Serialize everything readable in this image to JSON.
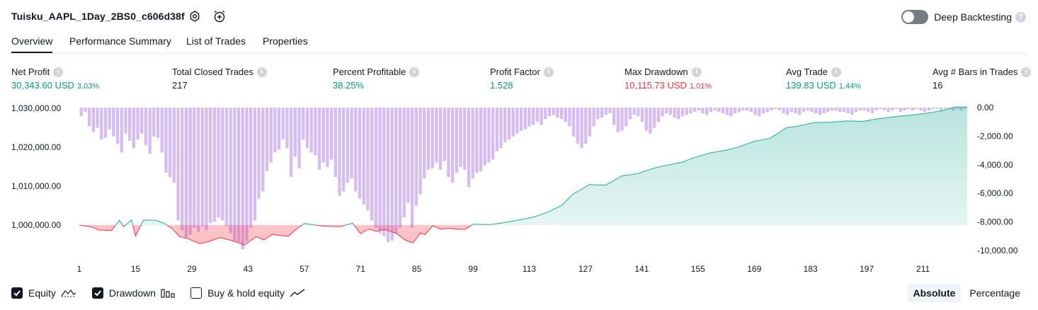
{
  "header": {
    "strategy_name": "Tuisku_AAPL_1Day_2BS0_c606d38f",
    "settings_icon": "gear-icon",
    "alert_icon": "alarm-plus-icon",
    "deep_backtesting_label": "Deep Backtesting",
    "deep_backtesting_enabled": false,
    "help_icon": "question-icon"
  },
  "tabs": [
    {
      "label": "Overview",
      "active": true
    },
    {
      "label": "Performance Summary",
      "active": false
    },
    {
      "label": "List of Trades",
      "active": false
    },
    {
      "label": "Properties",
      "active": false
    }
  ],
  "metrics": [
    {
      "label": "Net Profit",
      "value": "30,343.60 USD",
      "pct": "3.03%",
      "color": "#089981"
    },
    {
      "label": "Total Closed Trades",
      "value": "217",
      "pct": "",
      "color": "#131722"
    },
    {
      "label": "Percent Profitable",
      "value": "38.25%",
      "pct": "",
      "color": "#089981"
    },
    {
      "label": "Profit Factor",
      "value": "1.528",
      "pct": "",
      "color": "#089981"
    },
    {
      "label": "Max Drawdown",
      "value": "10,115.73 USD",
      "pct": "1.01%",
      "color": "#f23645"
    },
    {
      "label": "Avg Trade",
      "value": "139.83 USD",
      "pct": "1.44%",
      "color": "#089981"
    },
    {
      "label": "Avg # Bars in Trades",
      "value": "16",
      "pct": "",
      "color": "#131722"
    }
  ],
  "chart_data": {
    "type": "area",
    "x_ticks": [
      "1",
      "15",
      "29",
      "43",
      "57",
      "71",
      "85",
      "99",
      "113",
      "127",
      "141",
      "155",
      "169",
      "183",
      "197",
      "211"
    ],
    "xlim": [
      1,
      222
    ],
    "left_axis": {
      "ticks": [
        "1,030,000.00",
        "1,020,000.00",
        "1,010,000.00",
        "1,000,000.00"
      ],
      "ylim": [
        992000,
        1030500
      ],
      "baseline": 1000000
    },
    "right_axis": {
      "ticks": [
        "0.00",
        "-2,000.00",
        "-4,000.00",
        "-6,000.00",
        "-8,000.00",
        "-10,000.00"
      ],
      "ylim": [
        -10400,
        100
      ]
    },
    "equity": {
      "name": "Equity",
      "points": [
        [
          1,
          1000000
        ],
        [
          4,
          999500
        ],
        [
          6,
          998700
        ],
        [
          9,
          998600
        ],
        [
          11,
          1001200
        ],
        [
          12,
          999600
        ],
        [
          14,
          1001300
        ],
        [
          15,
          997200
        ],
        [
          17,
          1001300
        ],
        [
          20,
          1001200
        ],
        [
          22,
          1000500
        ],
        [
          24,
          999200
        ],
        [
          26,
          997000
        ],
        [
          28,
          996500
        ],
        [
          31,
          995200
        ],
        [
          33,
          995700
        ],
        [
          36,
          996800
        ],
        [
          39,
          996000
        ],
        [
          41,
          995300
        ],
        [
          42,
          994800
        ],
        [
          45,
          997000
        ],
        [
          47,
          996200
        ],
        [
          49,
          997600
        ],
        [
          51,
          997300
        ],
        [
          53,
          997100
        ],
        [
          55,
          998900
        ],
        [
          57,
          1000400
        ],
        [
          59,
          1000100
        ],
        [
          62,
          999700
        ],
        [
          66,
          999600
        ],
        [
          69,
          1000500
        ],
        [
          71,
          997800
        ],
        [
          73,
          999000
        ],
        [
          75,
          998400
        ],
        [
          77,
          998900
        ],
        [
          80,
          997800
        ],
        [
          82,
          996200
        ],
        [
          84,
          995400
        ],
        [
          86,
          998000
        ],
        [
          87,
          997500
        ],
        [
          89,
          999800
        ],
        [
          91,
          998900
        ],
        [
          93,
          999200
        ],
        [
          95,
          998900
        ],
        [
          97,
          998900
        ],
        [
          99,
          1000200
        ],
        [
          103,
          1000100
        ],
        [
          106,
          1000500
        ],
        [
          110,
          1001200
        ],
        [
          114,
          1002000
        ],
        [
          118,
          1003500
        ],
        [
          121,
          1005000
        ],
        [
          124,
          1008000
        ],
        [
          128,
          1010400
        ],
        [
          132,
          1010200
        ],
        [
          136,
          1012600
        ],
        [
          140,
          1013200
        ],
        [
          144,
          1014600
        ],
        [
          147,
          1015300
        ],
        [
          151,
          1016100
        ],
        [
          154,
          1017300
        ],
        [
          158,
          1018500
        ],
        [
          162,
          1019200
        ],
        [
          165,
          1020000
        ],
        [
          169,
          1021500
        ],
        [
          173,
          1022300
        ],
        [
          177,
          1025000
        ],
        [
          180,
          1025400
        ],
        [
          184,
          1026300
        ],
        [
          188,
          1026400
        ],
        [
          192,
          1026700
        ],
        [
          196,
          1026600
        ],
        [
          200,
          1027300
        ],
        [
          204,
          1027800
        ],
        [
          208,
          1028200
        ],
        [
          212,
          1028700
        ],
        [
          216,
          1029400
        ],
        [
          219,
          1030300
        ],
        [
          222,
          1030300
        ]
      ]
    },
    "drawdown": {
      "name": "Drawdown",
      "values": [
        -6,
        -3,
        -13,
        -17,
        -14,
        -22,
        -21,
        -15,
        -20,
        -25,
        -31,
        -18,
        -23,
        -28,
        -22,
        -18,
        -26,
        -32,
        -20,
        -21,
        -31,
        -45,
        -48,
        -52,
        -78,
        -85,
        -90,
        -88,
        -83,
        -86,
        -82,
        -85,
        -80,
        -79,
        -76,
        -78,
        -82,
        -87,
        -92,
        -93,
        -98,
        -92,
        -83,
        -78,
        -63,
        -58,
        -44,
        -38,
        -31,
        -29,
        -22,
        -28,
        -48,
        -34,
        -42,
        -22,
        -28,
        -31,
        -33,
        -43,
        -38,
        -41,
        -36,
        -48,
        -61,
        -58,
        -52,
        -49,
        -58,
        -63,
        -67,
        -71,
        -78,
        -83,
        -87,
        -89,
        -93,
        -92,
        -87,
        -83,
        -76,
        -66,
        -83,
        -68,
        -60,
        -49,
        -43,
        -42,
        -38,
        -43,
        -37,
        -48,
        -52,
        -45,
        -41,
        -43,
        -55,
        -49,
        -45,
        -44,
        -40,
        -38,
        -36,
        -30,
        -28,
        -24,
        -22,
        -20,
        -18,
        -16,
        -15,
        -13,
        -12,
        -10,
        -12,
        -8,
        -6,
        -5,
        -7,
        -8,
        -10,
        -13,
        -20,
        -25,
        -28,
        -25,
        -20,
        -13,
        -8,
        -7,
        -5,
        -4,
        -12,
        -17,
        -16,
        -13,
        -8,
        -5,
        -6,
        -10,
        -16,
        -18,
        -14,
        -10,
        -6,
        -4,
        -5,
        -7,
        -8,
        -6,
        -5,
        -4,
        -3,
        -2,
        -4,
        -5,
        -3,
        -2,
        -3,
        -4,
        -5,
        -6,
        -4,
        -3,
        -2,
        -2,
        -3,
        -5,
        -6,
        -4,
        -3,
        -2,
        -1,
        -2,
        -4,
        -5,
        -3,
        -4,
        -5,
        -3,
        -2,
        -3,
        -4,
        -5,
        -4,
        -3,
        -2,
        -2,
        -3,
        -3,
        -4,
        -5,
        -3,
        -2,
        -2,
        -3,
        -4,
        -2,
        -1,
        -2,
        -3,
        -2,
        -1,
        -3,
        -2,
        -1,
        -2,
        -1,
        -2,
        -3,
        -2,
        -1,
        -1,
        -2,
        -1,
        -1,
        -2,
        -1,
        -2,
        -1
      ],
      "value_scale_max": 10115.73
    },
    "buy_hold_equity": {
      "name": "Buy & hold equity",
      "visible": false
    },
    "colors": {
      "equity_line": "#22ab94",
      "equity_fill": "#d4efe7",
      "equity_loss_line": "#f23645",
      "loss_fill": "#fbd1d5",
      "drawdown": "#d6bbf5"
    }
  },
  "legend": [
    {
      "label": "Equity",
      "checked": true,
      "icon": "equity-line-icon"
    },
    {
      "label": "Drawdown",
      "checked": true,
      "icon": "drawdown-bars-icon"
    },
    {
      "label": "Buy & hold equity",
      "checked": false,
      "icon": "buy-hold-line-icon"
    }
  ],
  "modes": [
    {
      "label": "Absolute",
      "active": true
    },
    {
      "label": "Percentage",
      "active": false
    }
  ]
}
